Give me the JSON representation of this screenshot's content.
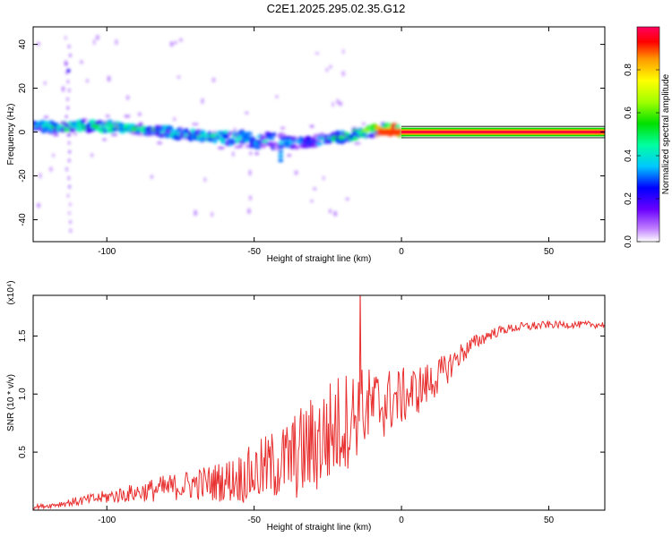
{
  "title": "C2E1.2025.295.02.35.G12",
  "chart_data": [
    {
      "type": "heatmap",
      "xlabel": "Height of straight line (km)",
      "ylabel": "Frequency (Hz)",
      "xlim": [
        -125,
        69
      ],
      "ylim": [
        -50,
        48
      ],
      "xticks": [
        -100,
        -50,
        0,
        50
      ],
      "xtick_labels": [
        "-100",
        "-50",
        "0",
        "50"
      ],
      "yticks": [
        -40,
        -20,
        0,
        20,
        40
      ],
      "ytick_labels": [
        "-40",
        "-20",
        "0",
        "20",
        "40"
      ],
      "colorbar": {
        "label": "Normalized spectral amplitude",
        "range": [
          0,
          1
        ],
        "ticks": [
          0.0,
          0.2,
          0.4,
          0.6,
          0.8
        ],
        "tick_labels": [
          "0.0",
          "0.2",
          "0.4",
          "0.6",
          "0.8"
        ]
      },
      "ridge": {
        "x": [
          -125,
          -115,
          -105,
          -95,
          -85,
          -75,
          -65,
          -55,
          -45,
          -35,
          -25,
          -15,
          -8,
          -3,
          0,
          10,
          30,
          50,
          69
        ],
        "frequency": [
          3,
          2,
          3,
          2,
          1,
          -1,
          -2,
          -3,
          -4,
          -5,
          -3,
          -1,
          1,
          1,
          0,
          0,
          0,
          0,
          0
        ],
        "amplitude": [
          0.45,
          0.5,
          0.5,
          0.5,
          0.45,
          0.45,
          0.45,
          0.45,
          0.4,
          0.35,
          0.45,
          0.55,
          0.85,
          0.95,
          1.0,
          1.0,
          1.0,
          1.0,
          1.0
        ]
      }
    },
    {
      "type": "line",
      "xlabel": "Height of straight line (km)",
      "ylabel": "SNR (10 * v/v)",
      "scale_label": "(x10⁴)",
      "xlim": [
        -125,
        69
      ],
      "ylim": [
        0,
        1.85
      ],
      "xticks": [
        -100,
        -50,
        0,
        50
      ],
      "xtick_labels": [
        "-100",
        "-50",
        "0",
        "50"
      ],
      "yticks": [
        0.5,
        1.0,
        1.5
      ],
      "ytick_labels": [
        "0.5",
        "1.0",
        "1.5"
      ],
      "color": "#e83030",
      "series": [
        {
          "x": [
            -125,
            -120,
            -115,
            -110,
            -105,
            -100,
            -95,
            -90,
            -85,
            -80,
            -75,
            -70,
            -65,
            -60,
            -55,
            -50,
            -45,
            -40,
            -35,
            -30,
            -25,
            -20,
            -15,
            -10,
            -5,
            0,
            5,
            10,
            15,
            20,
            25,
            30,
            35,
            40,
            45,
            50,
            55,
            60,
            65,
            69
          ],
          "y": [
            0.03,
            0.04,
            0.06,
            0.08,
            0.1,
            0.12,
            0.14,
            0.16,
            0.18,
            0.2,
            0.22,
            0.24,
            0.25,
            0.27,
            0.3,
            0.34,
            0.4,
            0.45,
            0.52,
            0.6,
            0.7,
            0.8,
            0.88,
            0.92,
            0.96,
            1.0,
            1.05,
            1.12,
            1.22,
            1.35,
            1.45,
            1.52,
            1.56,
            1.58,
            1.59,
            1.6,
            1.6,
            1.6,
            1.6,
            1.6
          ],
          "noise": [
            0.02,
            0.02,
            0.03,
            0.04,
            0.05,
            0.06,
            0.07,
            0.08,
            0.1,
            0.12,
            0.12,
            0.14,
            0.16,
            0.18,
            0.22,
            0.26,
            0.3,
            0.34,
            0.4,
            0.45,
            0.48,
            0.45,
            0.4,
            0.35,
            0.3,
            0.25,
            0.22,
            0.18,
            0.14,
            0.1,
            0.07,
            0.05,
            0.04,
            0.04,
            0.04,
            0.03,
            0.03,
            0.03,
            0.03,
            0.03
          ]
        }
      ],
      "peak": {
        "x": -14,
        "y": 1.85
      }
    }
  ]
}
